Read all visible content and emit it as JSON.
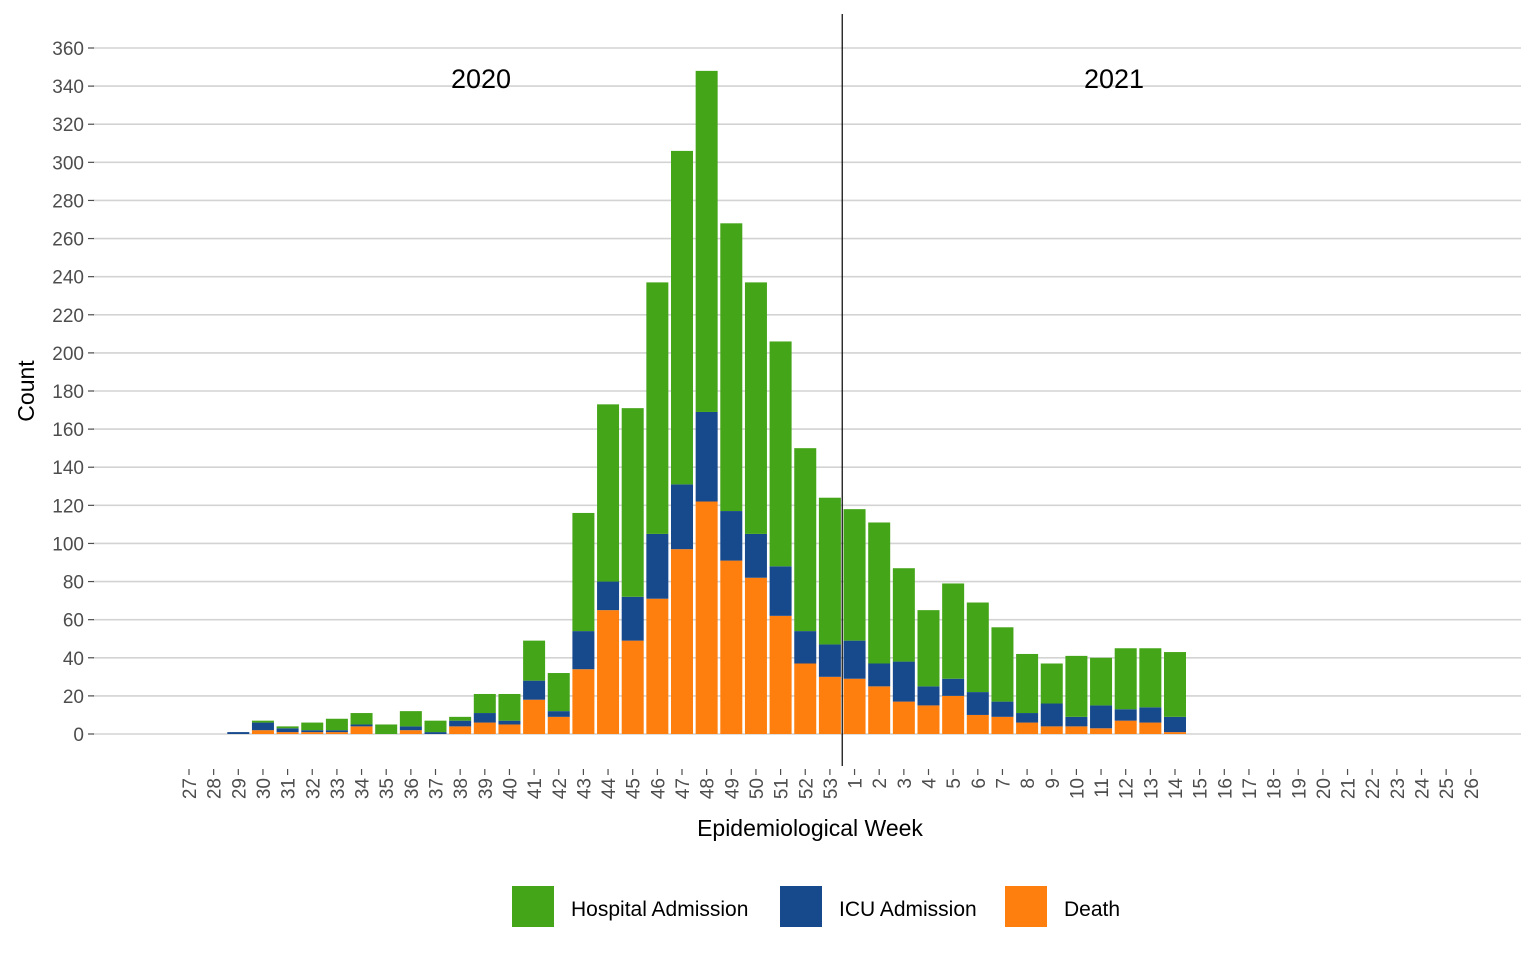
{
  "chart_data": {
    "type": "bar",
    "stacked": true,
    "xlabel": "Epidemiological Week",
    "ylabel": "Count",
    "ylim": [
      0,
      360
    ],
    "yticks": [
      0,
      20,
      40,
      60,
      80,
      100,
      120,
      140,
      160,
      180,
      200,
      220,
      240,
      260,
      280,
      300,
      320,
      340,
      360
    ],
    "grid": "horizontal",
    "legend_position": "bottom",
    "annotations": [
      {
        "text": "2020"
      },
      {
        "text": "2021"
      }
    ],
    "divider_after_category": "53",
    "categories": [
      "27",
      "28",
      "29",
      "30",
      "31",
      "32",
      "33",
      "34",
      "35",
      "36",
      "37",
      "38",
      "39",
      "40",
      "41",
      "42",
      "43",
      "44",
      "45",
      "46",
      "47",
      "48",
      "49",
      "50",
      "51",
      "52",
      "53",
      "1",
      "2",
      "3",
      "4",
      "5",
      "6",
      "7",
      "8",
      "9",
      "10",
      "11",
      "12",
      "13",
      "14",
      "15",
      "16",
      "17",
      "18",
      "19",
      "20",
      "21",
      "22",
      "23",
      "24",
      "25",
      "26"
    ],
    "series": [
      {
        "name": "Death",
        "color": "#ff7f0e",
        "values": [
          0,
          0,
          0,
          2,
          1,
          1,
          1,
          4,
          0,
          2,
          0,
          4,
          6,
          5,
          18,
          9,
          34,
          65,
          49,
          71,
          97,
          122,
          91,
          82,
          62,
          37,
          30,
          29,
          25,
          17,
          15,
          20,
          10,
          9,
          6,
          4,
          4,
          3,
          7,
          6,
          1,
          0,
          0,
          0,
          0,
          0,
          0,
          0,
          0,
          0,
          0,
          0,
          0
        ]
      },
      {
        "name": "ICU Admission",
        "color": "#17498d",
        "values": [
          0,
          0,
          1,
          4,
          2,
          1,
          1,
          1,
          0,
          2,
          1,
          3,
          5,
          2,
          10,
          3,
          20,
          15,
          23,
          34,
          34,
          47,
          26,
          23,
          26,
          17,
          17,
          20,
          12,
          21,
          10,
          9,
          12,
          8,
          5,
          12,
          5,
          12,
          6,
          8,
          8,
          0,
          0,
          0,
          0,
          0,
          0,
          0,
          0,
          0,
          0,
          0,
          0
        ]
      },
      {
        "name": "Hospital Admission",
        "color": "#45a519",
        "values": [
          0,
          0,
          0,
          1,
          1,
          4,
          6,
          6,
          5,
          8,
          6,
          2,
          10,
          14,
          21,
          20,
          62,
          93,
          99,
          132,
          175,
          179,
          151,
          132,
          118,
          96,
          77,
          69,
          74,
          49,
          40,
          50,
          47,
          39,
          31,
          21,
          32,
          25,
          32,
          31,
          34,
          0,
          0,
          0,
          0,
          0,
          0,
          0,
          0,
          0,
          0,
          0,
          0
        ]
      }
    ],
    "legend_order": [
      "Hospital Admission",
      "ICU Admission",
      "Death"
    ]
  }
}
